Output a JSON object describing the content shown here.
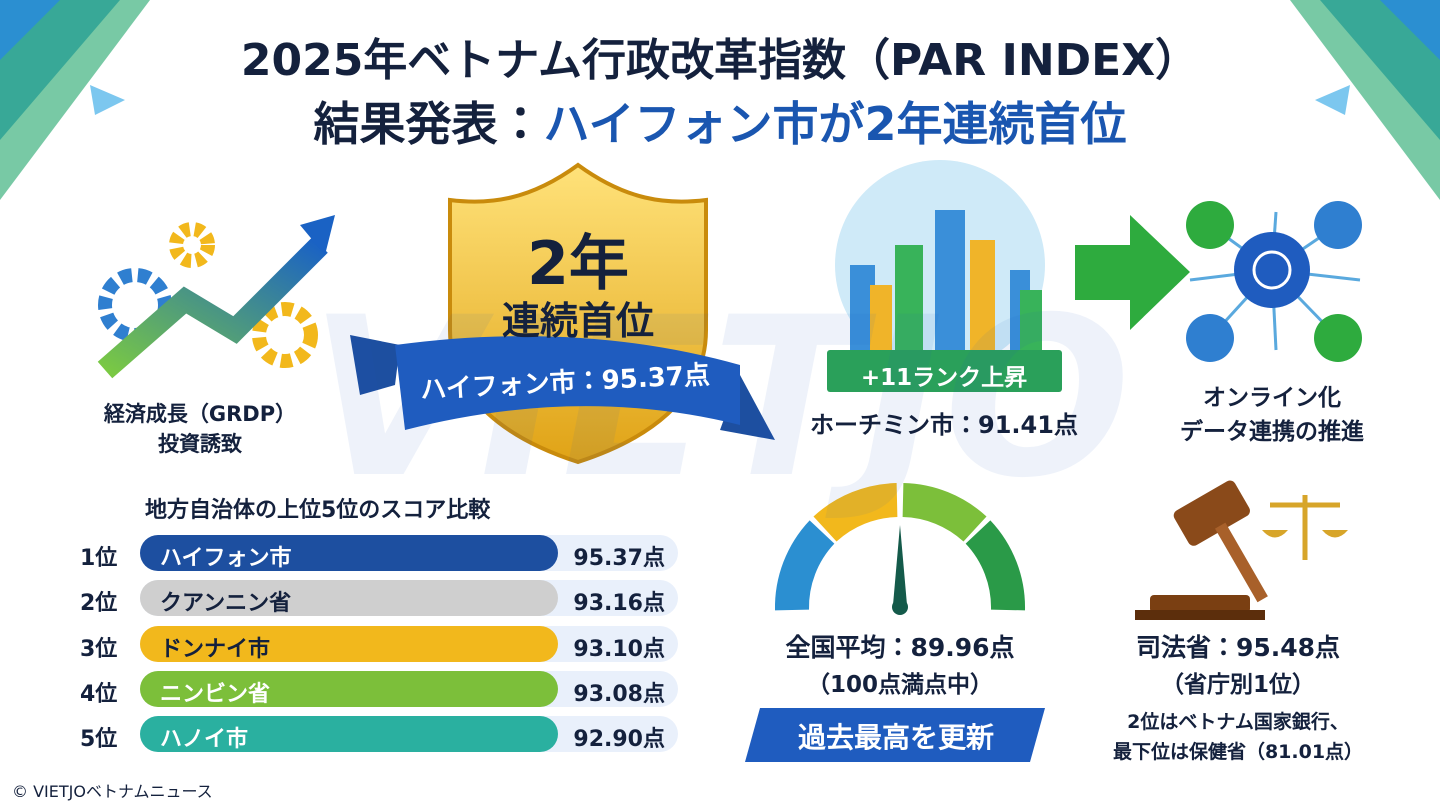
{
  "title": {
    "line1": "2025年ベトナム行政改革指数（PAR INDEX）",
    "line2_prefix": "結果発表：",
    "line2_highlight": "ハイフォン市が2年連続首位"
  },
  "growth": {
    "line1": "経済成長（GRDP）",
    "line2": "投資誘致"
  },
  "shield": {
    "big": "2年",
    "sub": "連続首位",
    "ribbon": "ハイフォン市：95.37点"
  },
  "hcmc": {
    "badge": "+11ランク上昇",
    "label": "ホーチミン市：91.41点"
  },
  "online": {
    "line1": "オンライン化",
    "line2": "データ連携の推進"
  },
  "ranking": {
    "title": "地方自治体の上位5位のスコア比較",
    "rows": [
      [
        "1位",
        "ハイフォン市",
        "95.37点"
      ],
      [
        "2位",
        "クアンニン省",
        "93.16点"
      ],
      [
        "3位",
        "ドンナイ市",
        "93.10点"
      ],
      [
        "4位",
        "ニンビン省",
        "93.08点"
      ],
      [
        "5位",
        "ハノイ市",
        "92.90点"
      ]
    ]
  },
  "average": {
    "label": "全国平均：89.96点",
    "note": "（100点満点中）",
    "banner": "過去最高を更新"
  },
  "justice": {
    "label": "司法省：95.48点",
    "note": "（省庁別1位）",
    "detail1": "2位はベトナム国家銀行、",
    "detail2": "最下位は保健省（81.01点）"
  },
  "watermark": "VIETJO",
  "footer": "© VIETJOベトナムニュース"
}
